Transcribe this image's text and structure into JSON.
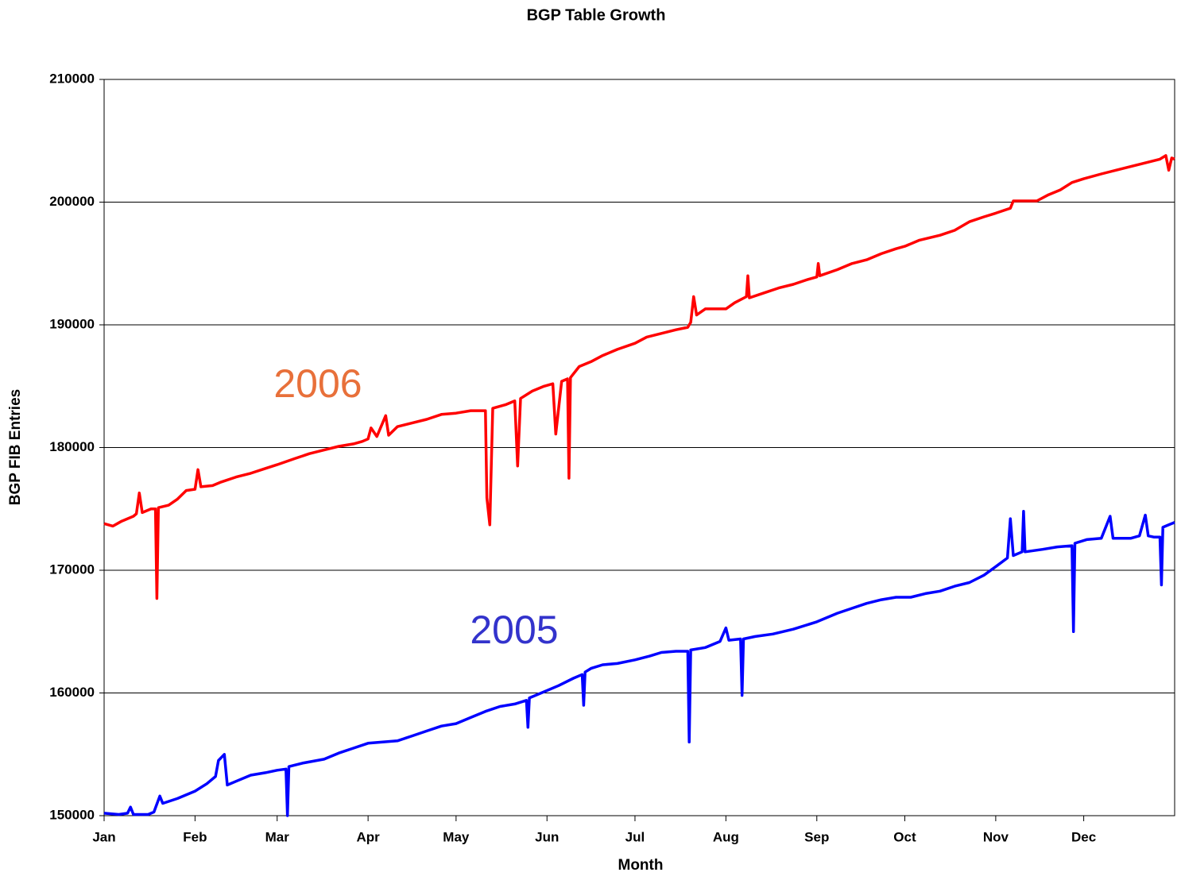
{
  "chart_data": {
    "type": "line",
    "title": "BGP Table Growth",
    "x_label": "Month",
    "y_label": "BGP FIB Entries",
    "xlim": [
      0,
      365
    ],
    "xticks": [
      {
        "value": 0,
        "label": "Jan"
      },
      {
        "value": 31,
        "label": "Feb"
      },
      {
        "value": 59,
        "label": "Mar"
      },
      {
        "value": 90,
        "label": "Apr"
      },
      {
        "value": 120,
        "label": "May"
      },
      {
        "value": 151,
        "label": "Jun"
      },
      {
        "value": 181,
        "label": "Jul"
      },
      {
        "value": 212,
        "label": "Aug"
      },
      {
        "value": 243,
        "label": "Sep"
      },
      {
        "value": 273,
        "label": "Oct"
      },
      {
        "value": 304,
        "label": "Nov"
      },
      {
        "value": 334,
        "label": "Dec"
      }
    ],
    "ylim": [
      150000,
      210000
    ],
    "yticks": [
      150000,
      160000,
      170000,
      180000,
      190000,
      200000,
      210000
    ],
    "grid": true,
    "series": [
      {
        "name": "2006",
        "color": "#ff0000",
        "x": [
          0,
          3,
          6,
          10,
          11,
          12,
          13,
          16,
          17.5,
          18,
          18.5,
          22,
          25,
          28,
          31,
          32,
          33,
          37,
          40,
          45,
          50,
          55,
          59,
          65,
          70,
          75,
          80,
          85,
          88,
          90,
          91,
          93,
          96,
          97,
          100,
          105,
          110,
          115,
          120,
          125,
          130,
          130.5,
          131.5,
          132.5,
          137,
          140,
          141,
          142,
          146,
          150,
          153,
          154,
          156,
          158,
          158.5,
          159,
          162,
          166,
          170,
          175,
          181,
          185,
          190,
          195,
          199,
          200,
          201,
          202,
          205,
          212,
          215,
          219,
          219.5,
          220,
          225,
          230,
          235,
          240,
          243,
          243.5,
          244,
          250,
          255,
          260,
          265,
          270,
          273,
          278,
          285,
          290,
          295,
          300,
          304,
          309,
          310,
          318,
          322,
          326,
          330,
          334,
          340,
          345,
          350,
          355,
          360,
          362,
          363,
          364,
          365
        ],
        "values": [
          173800,
          173600,
          174000,
          174400,
          174600,
          176300,
          174700,
          175000,
          175000,
          167700,
          175100,
          175300,
          175800,
          176500,
          176600,
          178200,
          176800,
          176900,
          177200,
          177600,
          177900,
          178300,
          178600,
          179100,
          179500,
          179800,
          180100,
          180300,
          180500,
          180700,
          181600,
          180900,
          182600,
          181000,
          181700,
          182000,
          182300,
          182700,
          182800,
          183000,
          183000,
          175900,
          173700,
          183200,
          183500,
          183800,
          178500,
          184000,
          184600,
          185000,
          185200,
          181100,
          185400,
          185600,
          177500,
          185700,
          186600,
          187000,
          187500,
          188000,
          188500,
          189000,
          189300,
          189600,
          189800,
          190200,
          192300,
          190800,
          191300,
          191300,
          191800,
          192300,
          194000,
          192200,
          192600,
          193000,
          193300,
          193700,
          193900,
          195000,
          194000,
          194500,
          195000,
          195300,
          195800,
          196200,
          196400,
          196900,
          197300,
          197700,
          198400,
          198800,
          199100,
          199500,
          200100,
          200100,
          200600,
          201000,
          201600,
          201900,
          202300,
          202600,
          202900,
          203200,
          203500,
          203800,
          202600,
          203600,
          203500
        ]
      },
      {
        "name": "2005",
        "color": "#0000ff",
        "x": [
          0,
          5,
          8,
          9,
          10,
          15,
          17,
          19,
          20,
          25,
          31,
          35,
          38,
          39,
          41,
          42,
          45,
          50,
          55,
          59,
          62,
          62.5,
          63,
          68,
          75,
          80,
          85,
          90,
          95,
          100,
          105,
          110,
          115,
          120,
          125,
          130,
          135,
          140,
          144,
          144.5,
          145,
          150,
          155,
          160,
          163,
          163.5,
          164,
          166,
          170,
          175,
          181,
          186,
          190,
          195,
          199,
          199.5,
          200,
          205,
          210,
          212,
          213,
          217,
          217.5,
          218,
          222,
          228,
          235,
          243,
          250,
          255,
          260,
          265,
          270,
          275,
          280,
          285,
          290,
          295,
          300,
          304,
          308,
          309,
          310,
          313,
          313.5,
          314,
          320,
          325,
          330,
          330.5,
          331,
          335,
          340,
          343,
          344,
          350,
          353,
          355,
          356,
          358,
          360,
          360.5,
          361,
          363,
          365
        ],
        "values": [
          150200,
          150100,
          150200,
          150700,
          150100,
          150100,
          150300,
          151600,
          151000,
          151400,
          152000,
          152600,
          153200,
          154500,
          155000,
          152500,
          152800,
          153300,
          153500,
          153700,
          153800,
          150000,
          154000,
          154300,
          154600,
          155100,
          155500,
          155900,
          156000,
          156100,
          156500,
          156900,
          157300,
          157500,
          158000,
          158500,
          158900,
          159100,
          159400,
          157200,
          159600,
          160100,
          160600,
          161200,
          161500,
          159000,
          161700,
          162000,
          162300,
          162400,
          162700,
          163000,
          163300,
          163400,
          163400,
          156000,
          163500,
          163700,
          164200,
          165300,
          164300,
          164400,
          159800,
          164400,
          164600,
          164800,
          165200,
          165800,
          166500,
          166900,
          167300,
          167600,
          167800,
          167800,
          168100,
          168300,
          168700,
          169000,
          169600,
          170300,
          171000,
          174200,
          171200,
          171500,
          174800,
          171500,
          171700,
          171900,
          172000,
          165000,
          172200,
          172500,
          172600,
          174400,
          172600,
          172600,
          172800,
          174500,
          172800,
          172700,
          172700,
          168800,
          173500,
          173700,
          173900
        ]
      }
    ],
    "annotations": [
      {
        "text": "2006",
        "color": "#e8703a"
      },
      {
        "text": "2005",
        "color": "#3333cc"
      }
    ]
  }
}
